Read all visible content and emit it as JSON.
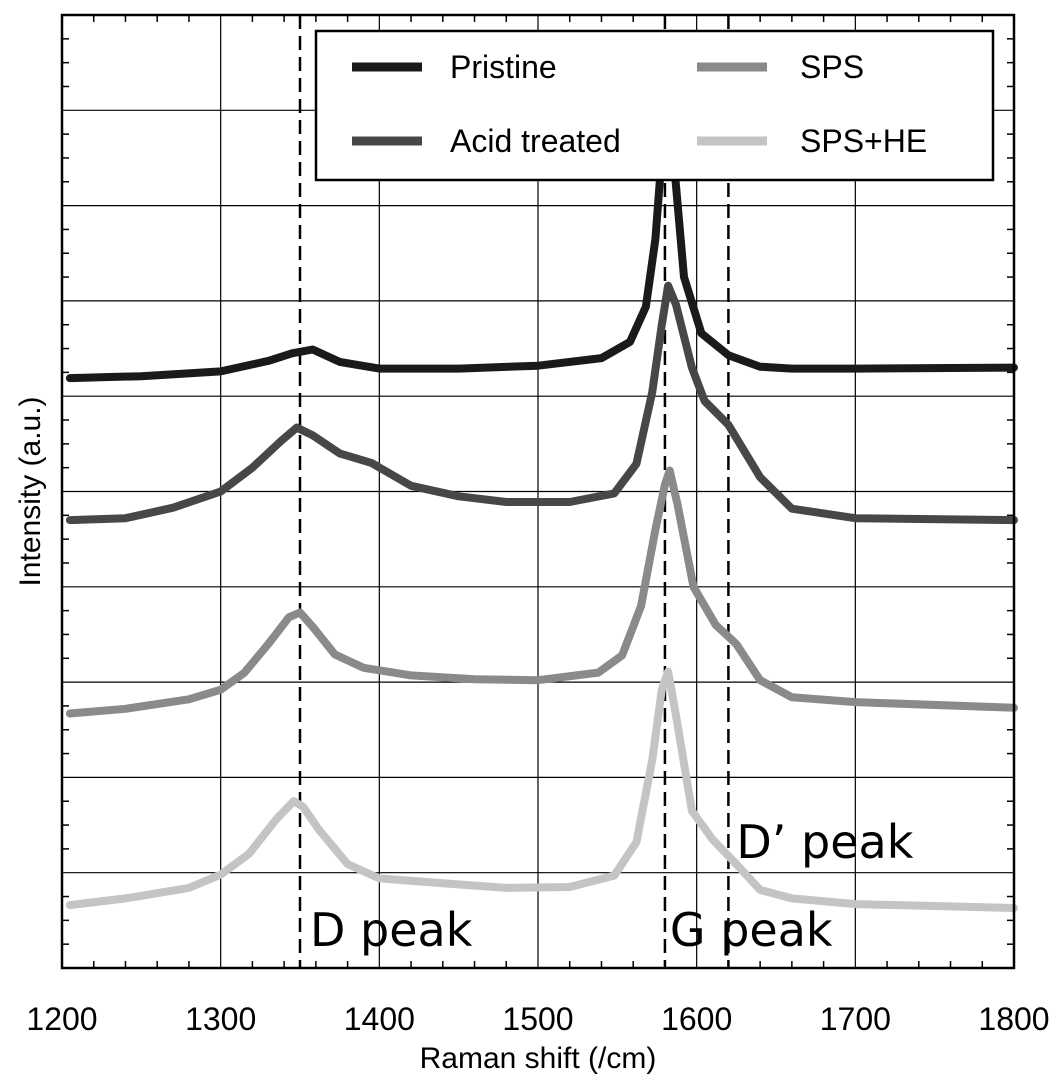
{
  "chart_data": {
    "type": "line",
    "xlabel": "Raman shift (/cm)",
    "ylabel": "Intensity (a.u.)",
    "xlim": [
      1200,
      1800
    ],
    "ylim": [
      0,
      10
    ],
    "grid": true,
    "legend_position": "top-right",
    "x_ticks": [
      "1200",
      "1300",
      "1400",
      "1500",
      "1600",
      "1700",
      "1800"
    ],
    "series": [
      {
        "name": "Pristine",
        "color": "#1a1a1a",
        "points": [
          [
            1205,
            6.19
          ],
          [
            1250,
            6.21
          ],
          [
            1300,
            6.26
          ],
          [
            1330,
            6.37
          ],
          [
            1345,
            6.45
          ],
          [
            1358,
            6.49
          ],
          [
            1375,
            6.36
          ],
          [
            1400,
            6.29
          ],
          [
            1450,
            6.29
          ],
          [
            1500,
            6.32
          ],
          [
            1540,
            6.4
          ],
          [
            1558,
            6.57
          ],
          [
            1568,
            6.94
          ],
          [
            1574,
            7.65
          ],
          [
            1579,
            8.74
          ],
          [
            1582,
            8.94
          ],
          [
            1585,
            8.58
          ],
          [
            1592,
            7.25
          ],
          [
            1603,
            6.66
          ],
          [
            1620,
            6.43
          ],
          [
            1640,
            6.31
          ],
          [
            1660,
            6.29
          ],
          [
            1700,
            6.29
          ],
          [
            1800,
            6.3
          ]
        ]
      },
      {
        "name": "Acid treated",
        "color": "#474747",
        "points": [
          [
            1205,
            4.7
          ],
          [
            1240,
            4.72
          ],
          [
            1270,
            4.83
          ],
          [
            1300,
            5.0
          ],
          [
            1320,
            5.25
          ],
          [
            1338,
            5.53
          ],
          [
            1348,
            5.67
          ],
          [
            1358,
            5.59
          ],
          [
            1375,
            5.4
          ],
          [
            1395,
            5.3
          ],
          [
            1420,
            5.06
          ],
          [
            1450,
            4.95
          ],
          [
            1480,
            4.89
          ],
          [
            1520,
            4.89
          ],
          [
            1548,
            4.98
          ],
          [
            1562,
            5.29
          ],
          [
            1572,
            6.04
          ],
          [
            1578,
            6.75
          ],
          [
            1582,
            7.16
          ],
          [
            1587,
            6.96
          ],
          [
            1597,
            6.3
          ],
          [
            1605,
            5.95
          ],
          [
            1620,
            5.7
          ],
          [
            1640,
            5.15
          ],
          [
            1660,
            4.82
          ],
          [
            1700,
            4.72
          ],
          [
            1800,
            4.7
          ]
        ]
      },
      {
        "name": "SPS",
        "color": "#8a8a8a",
        "points": [
          [
            1205,
            2.67
          ],
          [
            1240,
            2.72
          ],
          [
            1280,
            2.82
          ],
          [
            1300,
            2.92
          ],
          [
            1315,
            3.1
          ],
          [
            1330,
            3.4
          ],
          [
            1343,
            3.68
          ],
          [
            1350,
            3.73
          ],
          [
            1358,
            3.58
          ],
          [
            1372,
            3.29
          ],
          [
            1390,
            3.15
          ],
          [
            1420,
            3.07
          ],
          [
            1460,
            3.03
          ],
          [
            1500,
            3.02
          ],
          [
            1538,
            3.1
          ],
          [
            1553,
            3.28
          ],
          [
            1565,
            3.8
          ],
          [
            1574,
            4.6
          ],
          [
            1580,
            5.07
          ],
          [
            1583,
            5.22
          ],
          [
            1588,
            4.86
          ],
          [
            1598,
            4.0
          ],
          [
            1612,
            3.6
          ],
          [
            1625,
            3.4
          ],
          [
            1640,
            3.02
          ],
          [
            1660,
            2.84
          ],
          [
            1700,
            2.79
          ],
          [
            1800,
            2.73
          ]
        ]
      },
      {
        "name": "SPS+HE",
        "color": "#c4c4c4",
        "points": [
          [
            1205,
            0.66
          ],
          [
            1240,
            0.73
          ],
          [
            1280,
            0.84
          ],
          [
            1300,
            0.98
          ],
          [
            1318,
            1.2
          ],
          [
            1335,
            1.56
          ],
          [
            1346,
            1.75
          ],
          [
            1352,
            1.69
          ],
          [
            1362,
            1.45
          ],
          [
            1380,
            1.09
          ],
          [
            1400,
            0.94
          ],
          [
            1440,
            0.89
          ],
          [
            1480,
            0.84
          ],
          [
            1520,
            0.85
          ],
          [
            1548,
            0.97
          ],
          [
            1562,
            1.32
          ],
          [
            1572,
            2.18
          ],
          [
            1578,
            2.92
          ],
          [
            1582,
            3.11
          ],
          [
            1587,
            2.65
          ],
          [
            1597,
            1.65
          ],
          [
            1610,
            1.35
          ],
          [
            1625,
            1.09
          ],
          [
            1640,
            0.82
          ],
          [
            1660,
            0.73
          ],
          [
            1700,
            0.67
          ],
          [
            1800,
            0.63
          ]
        ]
      }
    ],
    "reference_lines": [
      {
        "x": 1350,
        "label": "D peak"
      },
      {
        "x": 1580,
        "label": "G peak"
      },
      {
        "x": 1620,
        "label": "D’ peak"
      }
    ]
  }
}
